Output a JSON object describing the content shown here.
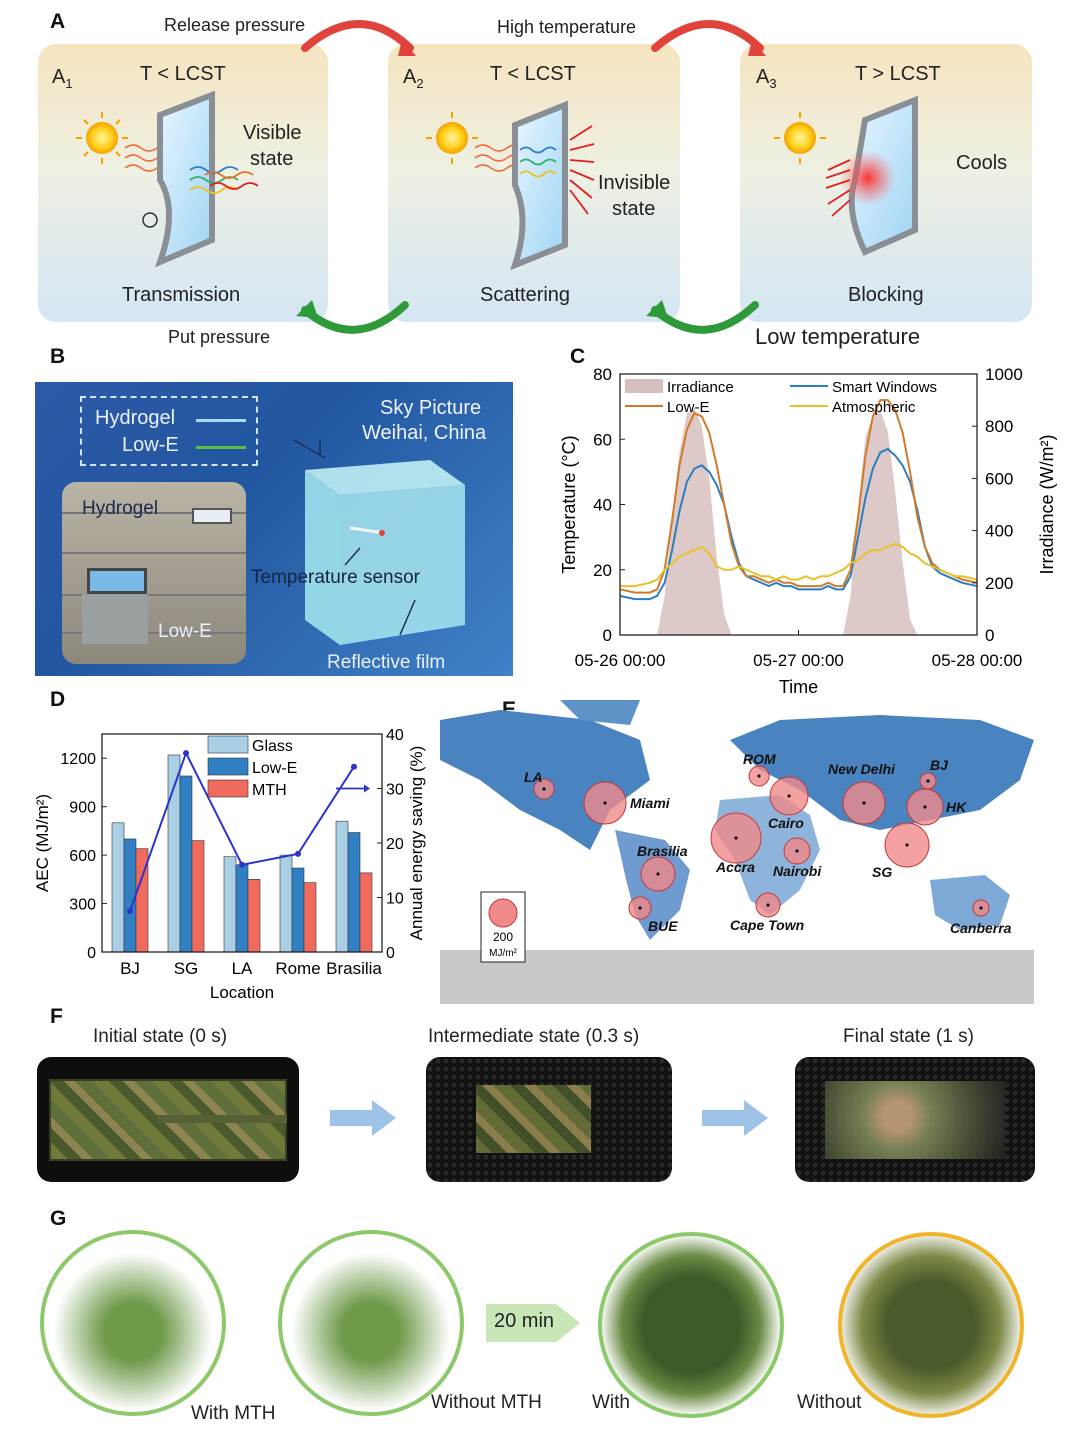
{
  "panelA": {
    "label": "A",
    "sub1": "A",
    "sub1_idx": "1",
    "sub2": "A",
    "sub2_idx": "2",
    "sub3": "A",
    "sub3_idx": "3",
    "cond1": "T < LCST",
    "cond2": "T < LCST",
    "cond3": "T > LCST",
    "release": "Release pressure",
    "high_temp": "High  temperature",
    "put": "Put pressure",
    "low_temp": "Low temperature",
    "visible_1": "Visible",
    "visible_2": "state",
    "invisible_1": "Invisible",
    "invisible_2": "state",
    "cools": "Cools",
    "transmission": "Transmission",
    "scattering": "Scattering",
    "blocking": "Blocking"
  },
  "panelB": {
    "label": "B",
    "legend_hydrogel": "Hydrogel",
    "legend_lowe": "Low-E",
    "sky_1": "Sky  Picture",
    "sky_2": "Weihai, China",
    "photo_hydrogel": "Hydrogel",
    "photo_lowe": "Low-E",
    "sensor": "Temperature  sensor",
    "film": "Reflective  film"
  },
  "panelC": {
    "label": "C",
    "chart_data": {
      "type": "line",
      "title": "",
      "xlabel": "Time",
      "ylabel": "Temperature (°C)",
      "y2label": "Irradiance (W/m²)",
      "xlim": [
        0,
        48
      ],
      "xticks": [
        "05-26 00:00",
        "05-27 00:00",
        "05-28 00:00"
      ],
      "ylim": [
        0,
        80
      ],
      "yticks": [
        0,
        20,
        40,
        60,
        80
      ],
      "y2lim": [
        0,
        1000
      ],
      "y2ticks": [
        0,
        200,
        400,
        600,
        800,
        1000
      ],
      "legend": [
        "Irradiance",
        "Smart Windows",
        "Low-E",
        "Atmospheric"
      ],
      "x": [
        0,
        2,
        4,
        5,
        6,
        7,
        8,
        9,
        10,
        11,
        12,
        13,
        14,
        15,
        16,
        17,
        18,
        19,
        20,
        21,
        22,
        23,
        24,
        25,
        26,
        27,
        28,
        29,
        30,
        31,
        32,
        33,
        34,
        35,
        36,
        37,
        38,
        39,
        40,
        41,
        42,
        43,
        44,
        45,
        46,
        48
      ],
      "series": [
        {
          "name": "Irradiance",
          "color": "#d8bfbf",
          "values": [
            0,
            0,
            0,
            0,
            150,
            450,
            700,
            850,
            870,
            800,
            600,
            300,
            80,
            0,
            0,
            0,
            0,
            0,
            0,
            0,
            0,
            0,
            0,
            0,
            0,
            0,
            0,
            0,
            0,
            150,
            480,
            760,
            840,
            860,
            780,
            550,
            280,
            60,
            0,
            0,
            0,
            0,
            0,
            0,
            0,
            0
          ]
        },
        {
          "name": "Smart Windows",
          "color": "#2a7fc0",
          "values": [
            12,
            11,
            11,
            12,
            16,
            26,
            38,
            47,
            51,
            52,
            50,
            46,
            40,
            30,
            22,
            18,
            17,
            16,
            15,
            16,
            15,
            15,
            14,
            14,
            14,
            14,
            15,
            14,
            14,
            18,
            30,
            42,
            51,
            56,
            57,
            55,
            52,
            47,
            38,
            27,
            21,
            19,
            18,
            17,
            16,
            15
          ]
        },
        {
          "name": "Low-E",
          "color": "#d07a2a",
          "values": [
            14,
            13,
            13,
            14,
            20,
            35,
            52,
            63,
            68,
            67,
            62,
            52,
            40,
            28,
            21,
            18,
            18,
            17,
            16,
            17,
            16,
            16,
            15,
            15,
            15,
            15,
            16,
            15,
            15,
            20,
            36,
            55,
            67,
            72,
            72,
            69,
            62,
            50,
            36,
            27,
            22,
            20,
            19,
            18,
            17,
            16
          ]
        },
        {
          "name": "Atmospheric",
          "color": "#e8c02a",
          "values": [
            15,
            15,
            16,
            17,
            20,
            22,
            24,
            25,
            26,
            27,
            25,
            21,
            20,
            20,
            21,
            20,
            19,
            18,
            18,
            17,
            18,
            17,
            17,
            18,
            17,
            18,
            18,
            19,
            20,
            22,
            23,
            25,
            26,
            26,
            27,
            28,
            27,
            25,
            24,
            22,
            21,
            20,
            19,
            18,
            18,
            17
          ]
        }
      ]
    }
  },
  "panelD": {
    "label": "D",
    "chart_data": {
      "type": "bar",
      "xlabel": "Location",
      "ylabel": "AEC (MJ/m²)",
      "y2label": "Annual energy saving  (%)",
      "categories": [
        "BJ",
        "SG",
        "LA",
        "Rome",
        "Brasilia"
      ],
      "ylim": [
        0,
        1350
      ],
      "yticks": [
        0,
        300,
        600,
        900,
        1200
      ],
      "y2lim": [
        0,
        40
      ],
      "y2ticks": [
        0,
        10,
        20,
        30,
        40
      ],
      "legend": [
        "Glass",
        "Low-E",
        "MTH"
      ],
      "series": [
        {
          "name": "Glass",
          "color": "#a9cfe5",
          "values": [
            800,
            1220,
            590,
            600,
            810
          ]
        },
        {
          "name": "Low-E",
          "color": "#2f7fc2",
          "values": [
            700,
            1090,
            540,
            520,
            740
          ]
        },
        {
          "name": "MTH",
          "color": "#f06b5d",
          "values": [
            640,
            690,
            450,
            430,
            490
          ]
        },
        {
          "name": "Annual energy saving",
          "color": "#2a34c8",
          "values": [
            7.5,
            36.5,
            16,
            18,
            34
          ]
        }
      ]
    }
  },
  "panelE": {
    "label": "E",
    "cities": [
      {
        "name": "LA",
        "size": 10
      },
      {
        "name": "Miami",
        "size": 21
      },
      {
        "name": "ROM",
        "size": 10
      },
      {
        "name": "Cairo",
        "size": 19
      },
      {
        "name": "New Delhi",
        "size": 21
      },
      {
        "name": "BJ",
        "size": 8
      },
      {
        "name": "HK",
        "size": 18
      },
      {
        "name": "Brasilia",
        "size": 17
      },
      {
        "name": "Accra",
        "size": 25
      },
      {
        "name": "Nairobi",
        "size": 13
      },
      {
        "name": "SG",
        "size": 22
      },
      {
        "name": "BUE",
        "size": 11
      },
      {
        "name": "Cape Town",
        "size": 12
      },
      {
        "name": "Canberra",
        "size": 8
      }
    ],
    "scale_value": "200",
    "scale_unit": "MJ/m²"
  },
  "panelF": {
    "label": "F",
    "initial": "Initial state (0 s)",
    "intermediate": "Intermediate state (0.3 s)",
    "final": "Final state (1 s)"
  },
  "panelG": {
    "label": "G",
    "with_mth": "With MTH",
    "without_mth": "Without MTH",
    "time": "20 min",
    "with": "With",
    "without": "Without"
  },
  "colors": {
    "panel_bg_top": "#f6e4bf",
    "panel_bg_bottom": "#d4e6f4",
    "arrow_red": "#e0433a",
    "arrow_green": "#2e9a3a",
    "map_blue": "#4a84c0",
    "bubble": "#f08a8a",
    "plant_green_ring": "#8cc96a",
    "plant_yellow_ring": "#f0b429"
  }
}
